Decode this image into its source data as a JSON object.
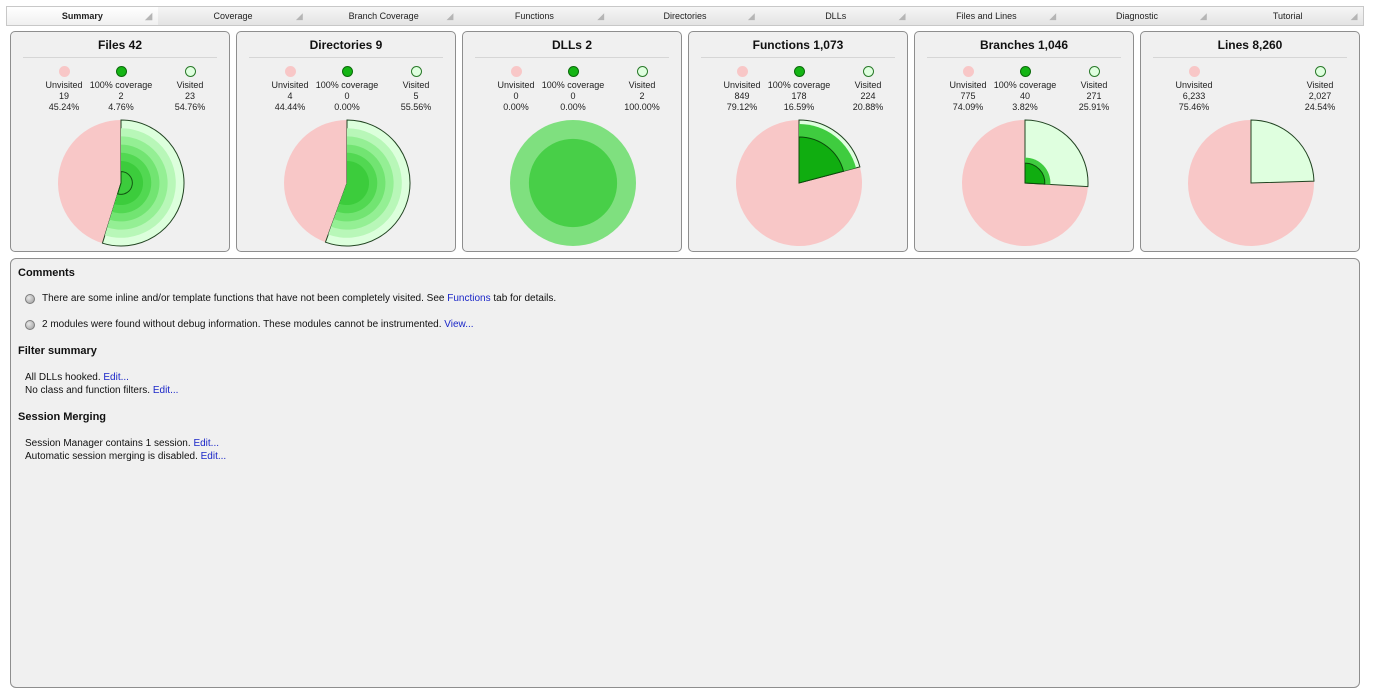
{
  "tabs": [
    {
      "label": "Summary",
      "active": true
    },
    {
      "label": "Coverage",
      "active": false
    },
    {
      "label": "Branch Coverage",
      "active": false
    },
    {
      "label": "Functions",
      "active": false
    },
    {
      "label": "Directories",
      "active": false
    },
    {
      "label": "DLLs",
      "active": false
    },
    {
      "label": "Files and Lines",
      "active": false
    },
    {
      "label": "Diagnostic",
      "active": false
    },
    {
      "label": "Tutorial",
      "active": false
    }
  ],
  "colors": {
    "unvisited": "#f8c7c7",
    "full": "#15b515",
    "visited": "#dfffdf",
    "link": "#1a26c8"
  },
  "cards": [
    {
      "title": "Files  42",
      "legend": [
        {
          "kind": "unvisited",
          "label": "Unvisited",
          "count": "19",
          "percent": "45.24%"
        },
        {
          "kind": "full",
          "label": "100% coverage",
          "count": "2",
          "percent": "4.76%"
        },
        {
          "kind": "visited",
          "label": "Visited",
          "count": "23",
          "percent": "54.76%"
        }
      ],
      "pie": {
        "unvisited": 0.4524,
        "full": 0.0476,
        "visited": 0.5476,
        "style": "sliced"
      }
    },
    {
      "title": "Directories  9",
      "legend": [
        {
          "kind": "unvisited",
          "label": "Unvisited",
          "count": "4",
          "percent": "44.44%"
        },
        {
          "kind": "full",
          "label": "100% coverage",
          "count": "0",
          "percent": "0.00%"
        },
        {
          "kind": "visited",
          "label": "Visited",
          "count": "5",
          "percent": "55.56%"
        }
      ],
      "pie": {
        "unvisited": 0.4444,
        "full": 0.0,
        "visited": 0.5556,
        "style": "sliced"
      }
    },
    {
      "title": "DLLs  2",
      "legend": [
        {
          "kind": "unvisited",
          "label": "Unvisited",
          "count": "0",
          "percent": "0.00%"
        },
        {
          "kind": "full",
          "label": "100% coverage",
          "count": "0",
          "percent": "0.00%"
        },
        {
          "kind": "visited",
          "label": "Visited",
          "count": "2",
          "percent": "100.00%"
        }
      ],
      "pie": {
        "unvisited": 0.0,
        "full": 0.0,
        "visited": 1.0,
        "style": "rings"
      }
    },
    {
      "title": "Functions  1,073",
      "legend": [
        {
          "kind": "unvisited",
          "label": "Unvisited",
          "count": "849",
          "percent": "79.12%"
        },
        {
          "kind": "full",
          "label": "100% coverage",
          "count": "178",
          "percent": "16.59%"
        },
        {
          "kind": "visited",
          "label": "Visited",
          "count": "224",
          "percent": "20.88%"
        }
      ],
      "pie": {
        "unvisited": 0.7912,
        "full": 0.1659,
        "visited": 0.2088,
        "style": "nested"
      }
    },
    {
      "title": "Branches  1,046",
      "legend": [
        {
          "kind": "unvisited",
          "label": "Unvisited",
          "count": "775",
          "percent": "74.09%"
        },
        {
          "kind": "full",
          "label": "100% coverage",
          "count": "40",
          "percent": "3.82%"
        },
        {
          "kind": "visited",
          "label": "Visited",
          "count": "271",
          "percent": "25.91%"
        }
      ],
      "pie": {
        "unvisited": 0.7409,
        "full": 0.0382,
        "visited": 0.2591,
        "style": "nested"
      }
    },
    {
      "title": "Lines  8,260",
      "legend": [
        {
          "kind": "unvisited",
          "label": "Unvisited",
          "count": "6,233",
          "percent": "75.46%"
        },
        {
          "kind": "visited",
          "label": "Visited",
          "count": "2,027",
          "percent": "24.54%"
        }
      ],
      "pie": {
        "unvisited": 0.7546,
        "full": 0.0,
        "visited": 0.2454,
        "style": "plain"
      }
    }
  ],
  "comments": {
    "title": "Comments",
    "item1": {
      "before": "There are some inline and/or template functions that have not been completely visited. See ",
      "link": "Functions",
      "after": " tab for details."
    },
    "item2": {
      "before": "2 modules were found without debug information. These modules cannot be instrumented. ",
      "link": "View..."
    }
  },
  "filter": {
    "title": "Filter summary",
    "line1": {
      "text": "All DLLs hooked. ",
      "link": "Edit..."
    },
    "line2": {
      "text": "No class and function filters. ",
      "link": "Edit..."
    }
  },
  "session": {
    "title": "Session Merging",
    "line1": {
      "text": "Session Manager contains 1 session. ",
      "link": "Edit..."
    },
    "line2": {
      "text": "Automatic session merging is disabled. ",
      "link": "Edit..."
    }
  }
}
